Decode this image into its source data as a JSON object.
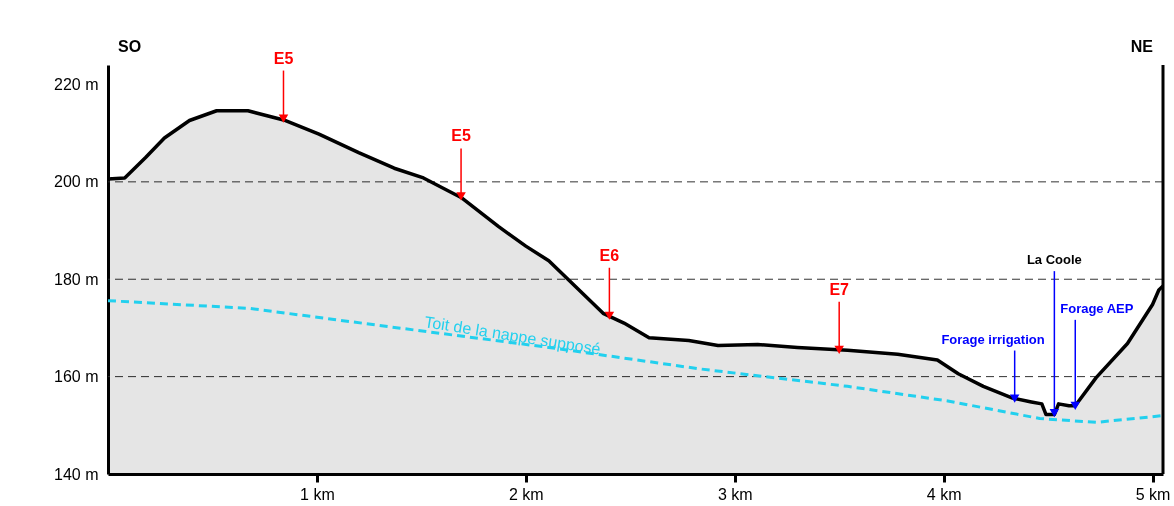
{
  "chart_data": {
    "type": "area",
    "xlim": [
      0,
      5.05
    ],
    "ylim": [
      140,
      224
    ],
    "xticks": [
      {
        "value": 1,
        "label": "1 km"
      },
      {
        "value": 2,
        "label": "2 km"
      },
      {
        "value": 3,
        "label": "3 km"
      },
      {
        "value": 4,
        "label": "4 km"
      },
      {
        "value": 5,
        "label": "5 km"
      }
    ],
    "yticks": [
      {
        "value": 140,
        "label": "140 m"
      },
      {
        "value": 160,
        "label": "160 m"
      },
      {
        "value": 180,
        "label": "180 m"
      },
      {
        "value": 200,
        "label": "200 m"
      },
      {
        "value": 220,
        "label": "220 m"
      }
    ],
    "series": [
      {
        "color": "#000000",
        "x": [
          0,
          0.08,
          0.18,
          0.27,
          0.39,
          0.52,
          0.67,
          0.85,
          1.01,
          1.2,
          1.37,
          1.51,
          1.69,
          1.87,
          2.0,
          2.11,
          2.25,
          2.37,
          2.47,
          2.59,
          2.78,
          2.92,
          3.11,
          3.3,
          3.54,
          3.78,
          3.97,
          4.07,
          4.19,
          4.33,
          4.42,
          4.47,
          4.49,
          4.53,
          4.55,
          4.6,
          4.63,
          4.73,
          4.88,
          5.0,
          5.03,
          5.05
        ],
        "values": [
          200.6,
          200.8,
          205,
          209,
          212.6,
          214.6,
          214.6,
          212.6,
          209.8,
          206,
          202.8,
          200.8,
          196.8,
          190.8,
          186.8,
          183.8,
          178,
          173,
          171,
          168,
          167.4,
          166.4,
          166.6,
          166,
          165.4,
          164.6,
          163.4,
          160.6,
          158,
          155.6,
          154.8,
          154.4,
          152.2,
          152.2,
          154.4,
          154,
          154,
          159.8,
          166.8,
          174.8,
          177.8,
          178.6
        ]
      },
      {
        "type": "line",
        "name": "Toit de la nappe supposé",
        "color": "#22d0ee",
        "line_style": "dashed",
        "x": [
          0,
          0.68,
          1.39,
          2.11,
          2.83,
          3.54,
          4.02,
          4.46,
          4.73,
          5.05
        ],
        "values": [
          175.6,
          174,
          170,
          166,
          161.6,
          158,
          155,
          151.4,
          150.6,
          152
        ]
      },
      {
        "type": "scatter",
        "marker": "triangle",
        "color": "#ff0000",
        "x": [
          0.84,
          1.69,
          2.4,
          3.5
        ],
        "values": [
          213,
          197,
          172.5,
          165.5
        ],
        "value_labels": [
          "E5",
          "E5",
          "E6",
          "E7"
        ]
      },
      {
        "type": "scatter",
        "marker": "triangle",
        "color": "#0000ff",
        "x": [
          4.34,
          4.53,
          4.63
        ],
        "values": [
          155.5,
          152.5,
          154
        ],
        "value_labels": [
          "Forage irrigation",
          null,
          "Forage AEP"
        ]
      }
    ],
    "ref_lines": [
      {
        "axis": "y",
        "value": 160,
        "color": "#333333",
        "line_style": "dashed"
      },
      {
        "axis": "y",
        "value": 180,
        "color": "#333333",
        "line_style": "dashed"
      },
      {
        "axis": "y",
        "value": 200,
        "color": "#333333",
        "line_style": "dashed"
      }
    ],
    "annotations": [
      "SO",
      "NE",
      {
        "text": "La Coole",
        "x": 4.53,
        "y": 152.5
      }
    ]
  }
}
